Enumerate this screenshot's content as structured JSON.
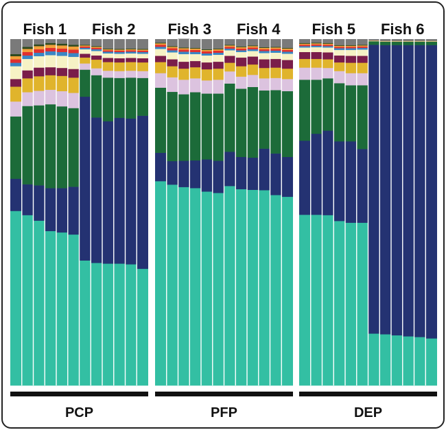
{
  "chart_data": {
    "type": "bar",
    "stacked": true,
    "normalized_total": 1.0,
    "fish": [
      {
        "label": "Fish 1",
        "group": 0
      },
      {
        "label": "Fish 2",
        "group": 0
      },
      {
        "label": "Fish 3",
        "group": 1
      },
      {
        "label": "Fish 4",
        "group": 1
      },
      {
        "label": "Fish 5",
        "group": 2
      },
      {
        "label": "Fish 6",
        "group": 2
      }
    ],
    "groups": [
      "PCP",
      "PFP",
      "DEP"
    ],
    "components": [
      {
        "key": "teal",
        "color": "#33bfa3"
      },
      {
        "key": "navy",
        "color": "#243272"
      },
      {
        "key": "green",
        "color": "#1c6b39"
      },
      {
        "key": "lavender",
        "color": "#dcc3df"
      },
      {
        "key": "gold",
        "color": "#e0b42c"
      },
      {
        "key": "maroon",
        "color": "#7a1d4a"
      },
      {
        "key": "cream",
        "color": "#f6f2c5"
      },
      {
        "key": "blue",
        "color": "#3a86c4"
      },
      {
        "key": "red",
        "color": "#e0302e"
      },
      {
        "key": "orange",
        "color": "#f2a03a"
      },
      {
        "key": "darkgreen",
        "color": "#2e4a1e"
      },
      {
        "key": "grey",
        "color": "#7a7a7a"
      }
    ],
    "bars": [
      {
        "fish": 0,
        "values": [
          0.504,
          0.093,
          0.18,
          0.043,
          0.043,
          0.022,
          0.037,
          0.01,
          0.01,
          0.009,
          0.006,
          0.043
        ]
      },
      {
        "fish": 0,
        "values": [
          0.492,
          0.089,
          0.226,
          0.04,
          0.04,
          0.023,
          0.033,
          0.01,
          0.01,
          0.009,
          0.006,
          0.022
        ]
      },
      {
        "fish": 0,
        "values": [
          0.476,
          0.102,
          0.231,
          0.042,
          0.042,
          0.025,
          0.033,
          0.01,
          0.01,
          0.009,
          0.005,
          0.015
        ]
      },
      {
        "fish": 0,
        "values": [
          0.446,
          0.124,
          0.242,
          0.042,
          0.042,
          0.023,
          0.035,
          0.011,
          0.01,
          0.009,
          0.005,
          0.011
        ]
      },
      {
        "fish": 0,
        "values": [
          0.442,
          0.128,
          0.236,
          0.044,
          0.044,
          0.023,
          0.035,
          0.011,
          0.01,
          0.009,
          0.005,
          0.013
        ]
      },
      {
        "fish": 0,
        "values": [
          0.436,
          0.138,
          0.227,
          0.044,
          0.044,
          0.025,
          0.035,
          0.011,
          0.01,
          0.009,
          0.005,
          0.016
        ]
      },
      {
        "fish": 1,
        "values": [
          0.361,
          0.473,
          0.078,
          0.018,
          0.017,
          0.011,
          0.013,
          0.004,
          0.004,
          0.003,
          0.002,
          0.016
        ]
      },
      {
        "fish": 1,
        "values": [
          0.354,
          0.42,
          0.122,
          0.02,
          0.025,
          0.012,
          0.013,
          0.005,
          0.004,
          0.003,
          0.002,
          0.02
        ]
      },
      {
        "fish": 1,
        "values": [
          0.352,
          0.411,
          0.126,
          0.02,
          0.025,
          0.012,
          0.013,
          0.005,
          0.004,
          0.003,
          0.002,
          0.027
        ]
      },
      {
        "fish": 1,
        "values": [
          0.352,
          0.421,
          0.115,
          0.02,
          0.025,
          0.012,
          0.013,
          0.005,
          0.004,
          0.003,
          0.002,
          0.028
        ]
      },
      {
        "fish": 1,
        "values": [
          0.35,
          0.421,
          0.118,
          0.02,
          0.025,
          0.012,
          0.013,
          0.005,
          0.004,
          0.003,
          0.002,
          0.027
        ]
      },
      {
        "fish": 1,
        "values": [
          0.337,
          0.442,
          0.109,
          0.02,
          0.025,
          0.012,
          0.013,
          0.005,
          0.004,
          0.003,
          0.002,
          0.028
        ]
      },
      {
        "fish": 2,
        "values": [
          0.59,
          0.082,
          0.188,
          0.042,
          0.032,
          0.018,
          0.02,
          0.006,
          0.006,
          0.004,
          0.002,
          0.01
        ]
      },
      {
        "fish": 2,
        "values": [
          0.58,
          0.068,
          0.2,
          0.042,
          0.032,
          0.02,
          0.02,
          0.006,
          0.006,
          0.004,
          0.002,
          0.02
        ]
      },
      {
        "fish": 2,
        "values": [
          0.573,
          0.076,
          0.192,
          0.042,
          0.032,
          0.02,
          0.022,
          0.007,
          0.006,
          0.004,
          0.002,
          0.025
        ]
      },
      {
        "fish": 2,
        "values": [
          0.57,
          0.08,
          0.197,
          0.04,
          0.032,
          0.018,
          0.02,
          0.006,
          0.006,
          0.004,
          0.002,
          0.025
        ]
      },
      {
        "fish": 2,
        "values": [
          0.56,
          0.093,
          0.19,
          0.038,
          0.032,
          0.02,
          0.02,
          0.006,
          0.006,
          0.004,
          0.002,
          0.029
        ]
      },
      {
        "fish": 2,
        "values": [
          0.556,
          0.093,
          0.194,
          0.04,
          0.032,
          0.02,
          0.02,
          0.006,
          0.006,
          0.004,
          0.002,
          0.027
        ]
      },
      {
        "fish": 3,
        "values": [
          0.576,
          0.099,
          0.197,
          0.035,
          0.025,
          0.02,
          0.016,
          0.005,
          0.005,
          0.004,
          0.002,
          0.016
        ]
      },
      {
        "fish": 3,
        "values": [
          0.567,
          0.093,
          0.197,
          0.035,
          0.03,
          0.025,
          0.016,
          0.005,
          0.005,
          0.004,
          0.002,
          0.021
        ]
      },
      {
        "fish": 3,
        "values": [
          0.565,
          0.093,
          0.204,
          0.035,
          0.03,
          0.023,
          0.016,
          0.005,
          0.005,
          0.004,
          0.002,
          0.018
        ]
      },
      {
        "fish": 3,
        "values": [
          0.564,
          0.12,
          0.168,
          0.035,
          0.03,
          0.025,
          0.018,
          0.006,
          0.005,
          0.004,
          0.002,
          0.023
        ]
      },
      {
        "fish": 3,
        "values": [
          0.55,
          0.12,
          0.183,
          0.035,
          0.03,
          0.025,
          0.018,
          0.006,
          0.005,
          0.004,
          0.002,
          0.022
        ]
      },
      {
        "fish": 3,
        "values": [
          0.545,
          0.115,
          0.19,
          0.035,
          0.03,
          0.025,
          0.018,
          0.006,
          0.005,
          0.004,
          0.002,
          0.025
        ]
      },
      {
        "fish": 4,
        "values": [
          0.493,
          0.214,
          0.176,
          0.035,
          0.025,
          0.02,
          0.013,
          0.004,
          0.004,
          0.003,
          0.002,
          0.011
        ]
      },
      {
        "fish": 4,
        "values": [
          0.493,
          0.234,
          0.156,
          0.035,
          0.025,
          0.02,
          0.014,
          0.004,
          0.004,
          0.003,
          0.002,
          0.01
        ]
      },
      {
        "fish": 4,
        "values": [
          0.492,
          0.244,
          0.151,
          0.03,
          0.025,
          0.02,
          0.014,
          0.004,
          0.004,
          0.003,
          0.002,
          0.011
        ]
      },
      {
        "fish": 4,
        "values": [
          0.475,
          0.23,
          0.168,
          0.035,
          0.025,
          0.02,
          0.016,
          0.005,
          0.004,
          0.003,
          0.002,
          0.017
        ]
      },
      {
        "fish": 4,
        "values": [
          0.47,
          0.235,
          0.162,
          0.035,
          0.03,
          0.02,
          0.017,
          0.005,
          0.004,
          0.003,
          0.002,
          0.017
        ]
      },
      {
        "fish": 4,
        "values": [
          0.47,
          0.213,
          0.184,
          0.035,
          0.03,
          0.02,
          0.018,
          0.005,
          0.004,
          0.003,
          0.002,
          0.016
        ]
      },
      {
        "fish": 5,
        "values": [
          0.15,
          0.834,
          0.01,
          0.0,
          0.0,
          0.0,
          0.001,
          0.0,
          0.0,
          0.001,
          0.0,
          0.004
        ]
      },
      {
        "fish": 5,
        "values": [
          0.148,
          0.835,
          0.01,
          0.0,
          0.0,
          0.0,
          0.001,
          0.0,
          0.0,
          0.001,
          0.0,
          0.005
        ]
      },
      {
        "fish": 5,
        "values": [
          0.145,
          0.838,
          0.01,
          0.0,
          0.0,
          0.0,
          0.001,
          0.0,
          0.0,
          0.001,
          0.0,
          0.005
        ]
      },
      {
        "fish": 5,
        "values": [
          0.142,
          0.841,
          0.01,
          0.0,
          0.0,
          0.0,
          0.001,
          0.0,
          0.0,
          0.001,
          0.0,
          0.005
        ]
      },
      {
        "fish": 5,
        "values": [
          0.14,
          0.843,
          0.01,
          0.0,
          0.0,
          0.0,
          0.001,
          0.0,
          0.0,
          0.001,
          0.0,
          0.005
        ]
      },
      {
        "fish": 5,
        "values": [
          0.136,
          0.847,
          0.01,
          0.0,
          0.0,
          0.0,
          0.001,
          0.0,
          0.0,
          0.001,
          0.0,
          0.005
        ]
      }
    ]
  }
}
